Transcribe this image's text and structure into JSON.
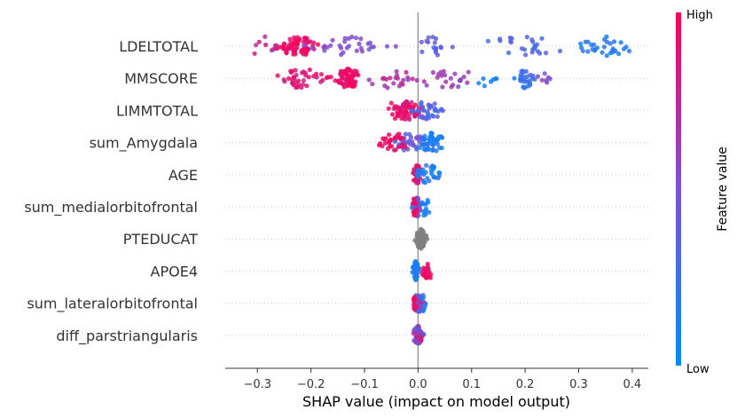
{
  "chart_data": {
    "type": "scatter",
    "subtype": "shap-beeswarm",
    "xlabel": "SHAP value (impact on model output)",
    "xlim": [
      -0.36,
      0.43
    ],
    "xticks": [
      -0.3,
      -0.2,
      -0.1,
      0.0,
      0.1,
      0.2,
      0.3,
      0.4
    ],
    "xtick_labels": [
      "−0.3",
      "−0.2",
      "−0.1",
      "0.0",
      "0.1",
      "0.2",
      "0.3",
      "0.4"
    ],
    "colorbar": {
      "title": "Feature value",
      "high_label": "High",
      "low_label": "Low",
      "high_color": "#ff0052",
      "low_color": "#008bfb",
      "missing_color": "#808080"
    },
    "features": [
      {
        "name": "LDELTOTAL",
        "clusters": [
          {
            "center": -0.225,
            "spread": 0.03,
            "count": 70,
            "fv": [
              0.85,
              1.0
            ]
          },
          {
            "center": -0.29,
            "spread": 0.03,
            "count": 10,
            "fv": [
              0.65,
              0.9
            ]
          },
          {
            "center": -0.12,
            "spread": 0.06,
            "count": 30,
            "fv": [
              0.45,
              0.6
            ]
          },
          {
            "center": 0.03,
            "spread": 0.03,
            "count": 18,
            "fv": [
              0.3,
              0.45
            ]
          },
          {
            "center": 0.2,
            "spread": 0.07,
            "count": 25,
            "fv": [
              0.25,
              0.4
            ]
          },
          {
            "center": 0.35,
            "spread": 0.04,
            "count": 30,
            "fv": [
              0.08,
              0.2
            ]
          }
        ]
      },
      {
        "name": "MMSCORE",
        "clusters": [
          {
            "center": -0.13,
            "spread": 0.02,
            "count": 70,
            "fv": [
              0.85,
              1.0
            ]
          },
          {
            "center": -0.22,
            "spread": 0.04,
            "count": 40,
            "fv": [
              0.8,
              0.95
            ]
          },
          {
            "center": -0.05,
            "spread": 0.04,
            "count": 22,
            "fv": [
              0.6,
              0.8
            ]
          },
          {
            "center": 0.05,
            "spread": 0.05,
            "count": 22,
            "fv": [
              0.55,
              0.7
            ]
          },
          {
            "center": 0.2,
            "spread": 0.012,
            "count": 25,
            "fv": [
              0.15,
              0.3
            ]
          },
          {
            "center": 0.14,
            "spread": 0.04,
            "count": 8,
            "fv": [
              0.05,
              0.15
            ]
          },
          {
            "center": 0.23,
            "spread": 0.02,
            "count": 8,
            "fv": [
              0.45,
              0.6
            ]
          }
        ]
      },
      {
        "name": "LIMMTOTAL",
        "clusters": [
          {
            "center": -0.02,
            "spread": 0.018,
            "count": 55,
            "fv": [
              0.75,
              1.0
            ]
          },
          {
            "center": 0.02,
            "spread": 0.025,
            "count": 35,
            "fv": [
              0.2,
              0.45
            ]
          },
          {
            "center": -0.04,
            "spread": 0.015,
            "count": 10,
            "fv": [
              0.9,
              1.0
            ]
          }
        ]
      },
      {
        "name": "sum_Amygdala",
        "clusters": [
          {
            "center": -0.015,
            "spread": 0.02,
            "count": 40,
            "fv": [
              0.3,
              0.55
            ]
          },
          {
            "center": -0.045,
            "spread": 0.02,
            "count": 30,
            "fv": [
              0.85,
              1.0
            ]
          },
          {
            "center": 0.025,
            "spread": 0.02,
            "count": 45,
            "fv": [
              0.05,
              0.2
            ]
          }
        ]
      },
      {
        "name": "AGE",
        "clusters": [
          {
            "center": -0.002,
            "spread": 0.006,
            "count": 45,
            "fv": [
              0.7,
              1.0
            ]
          },
          {
            "center": 0.02,
            "spread": 0.018,
            "count": 30,
            "fv": [
              0.05,
              0.2
            ]
          }
        ]
      },
      {
        "name": "sum_medialorbitofrontal",
        "clusters": [
          {
            "center": -0.002,
            "spread": 0.006,
            "count": 55,
            "fv": [
              0.25,
              0.7
            ]
          },
          {
            "center": 0.012,
            "spread": 0.01,
            "count": 12,
            "fv": [
              0.05,
              0.15
            ]
          },
          {
            "center": -0.006,
            "spread": 0.004,
            "count": 10,
            "fv": [
              0.85,
              1.0
            ]
          }
        ]
      },
      {
        "name": "PTEDUCAT",
        "clusters": [
          {
            "center": 0.005,
            "spread": 0.008,
            "count": 70,
            "fv": null
          }
        ]
      },
      {
        "name": "APOE4",
        "clusters": [
          {
            "center": -0.004,
            "spread": 0.004,
            "count": 45,
            "fv": [
              0.05,
              0.2
            ]
          },
          {
            "center": 0.017,
            "spread": 0.008,
            "count": 28,
            "fv": [
              0.85,
              1.0
            ]
          }
        ]
      },
      {
        "name": "sum_lateralorbitofrontal",
        "clusters": [
          {
            "center": 0.0,
            "spread": 0.007,
            "count": 60,
            "fv": [
              0.2,
              0.9
            ]
          },
          {
            "center": 0.012,
            "spread": 0.006,
            "count": 8,
            "fv": [
              0.05,
              0.2
            ]
          },
          {
            "center": -0.008,
            "spread": 0.004,
            "count": 8,
            "fv": [
              0.85,
              1.0
            ]
          }
        ]
      },
      {
        "name": "diff_parstriangularis",
        "clusters": [
          {
            "center": 0.0,
            "spread": 0.007,
            "count": 70,
            "fv": [
              0.1,
              0.9
            ]
          }
        ]
      }
    ]
  }
}
